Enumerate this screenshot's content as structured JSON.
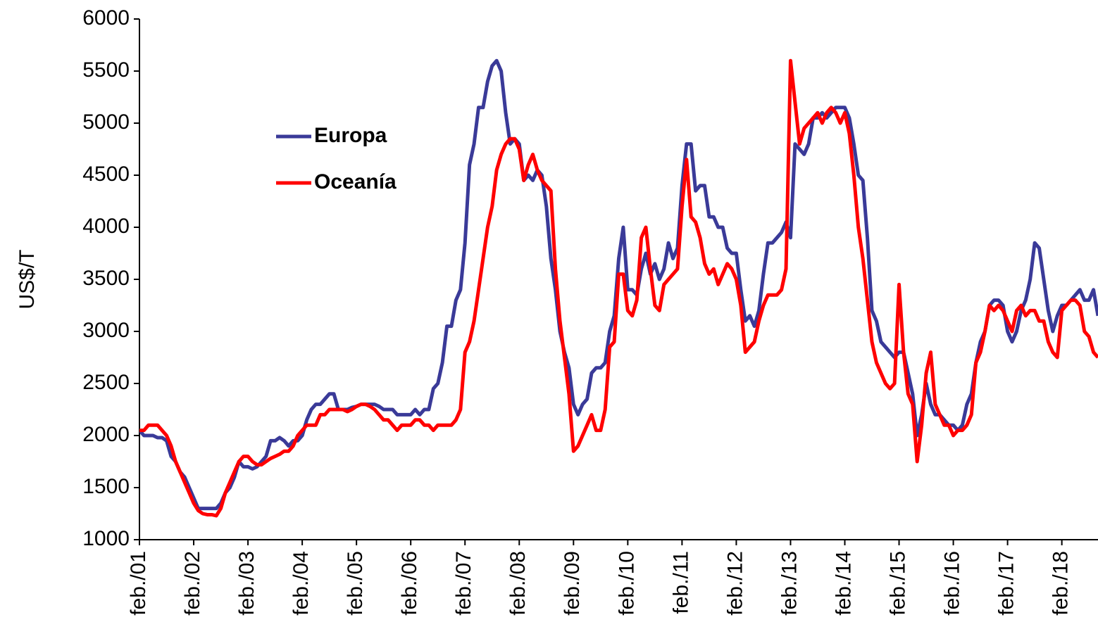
{
  "chart_data": {
    "type": "line",
    "y_label": "US$/T",
    "ylim": [
      1000,
      6000
    ],
    "yticks": [
      1000,
      1500,
      2000,
      2500,
      3000,
      3500,
      4000,
      4500,
      5000,
      5500,
      6000
    ],
    "xlim": [
      0,
      212
    ],
    "xticks": [
      {
        "value": 0,
        "label": "feb./01"
      },
      {
        "value": 12,
        "label": "feb./02"
      },
      {
        "value": 24,
        "label": "feb./03"
      },
      {
        "value": 36,
        "label": "feb./04"
      },
      {
        "value": 48,
        "label": "feb./05"
      },
      {
        "value": 60,
        "label": "feb./06"
      },
      {
        "value": 72,
        "label": "feb./07"
      },
      {
        "value": 84,
        "label": "feb./08"
      },
      {
        "value": 96,
        "label": "feb./09"
      },
      {
        "value": 108,
        "label": "feb./10"
      },
      {
        "value": 120,
        "label": "feb./11"
      },
      {
        "value": 132,
        "label": "feb./12"
      },
      {
        "value": 144,
        "label": "feb./13"
      },
      {
        "value": 156,
        "label": "feb./14"
      },
      {
        "value": 168,
        "label": "feb./15"
      },
      {
        "value": 180,
        "label": "feb./16"
      },
      {
        "value": 192,
        "label": "feb./17"
      },
      {
        "value": 204,
        "label": "feb./18"
      }
    ],
    "x": [
      0,
      1,
      2,
      3,
      4,
      5,
      6,
      7,
      8,
      9,
      10,
      11,
      12,
      13,
      14,
      15,
      16,
      17,
      18,
      19,
      20,
      21,
      22,
      23,
      24,
      25,
      26,
      27,
      28,
      29,
      30,
      31,
      32,
      33,
      34,
      35,
      36,
      37,
      38,
      39,
      40,
      41,
      42,
      43,
      44,
      45,
      46,
      47,
      48,
      49,
      50,
      51,
      52,
      53,
      54,
      55,
      56,
      57,
      58,
      59,
      60,
      61,
      62,
      63,
      64,
      65,
      66,
      67,
      68,
      69,
      70,
      71,
      72,
      73,
      74,
      75,
      76,
      77,
      78,
      79,
      80,
      81,
      82,
      83,
      84,
      85,
      86,
      87,
      88,
      89,
      90,
      91,
      92,
      93,
      94,
      95,
      96,
      97,
      98,
      99,
      100,
      101,
      102,
      103,
      104,
      105,
      106,
      107,
      108,
      109,
      110,
      111,
      112,
      113,
      114,
      115,
      116,
      117,
      118,
      119,
      120,
      121,
      122,
      123,
      124,
      125,
      126,
      127,
      128,
      129,
      130,
      131,
      132,
      133,
      134,
      135,
      136,
      137,
      138,
      139,
      140,
      141,
      142,
      143,
      144,
      145,
      146,
      147,
      148,
      149,
      150,
      151,
      152,
      153,
      154,
      155,
      156,
      157,
      158,
      159,
      160,
      161,
      162,
      163,
      164,
      165,
      166,
      167,
      168,
      169,
      170,
      171,
      172,
      173,
      174,
      175,
      176,
      177,
      178,
      179,
      180,
      181,
      182,
      183,
      184,
      185,
      186,
      187,
      188,
      189,
      190,
      191,
      192,
      193,
      194,
      195,
      196,
      197,
      198,
      199,
      200,
      201,
      202,
      203,
      204,
      205,
      206,
      207,
      208,
      209,
      210,
      211,
      212
    ],
    "series": [
      {
        "name": "Europa",
        "color": "#3a3a98",
        "values": [
          2050,
          2000,
          2000,
          2000,
          1980,
          1980,
          1950,
          1800,
          1750,
          1650,
          1600,
          1500,
          1400,
          1300,
          1300,
          1300,
          1300,
          1300,
          1350,
          1450,
          1500,
          1600,
          1750,
          1700,
          1700,
          1680,
          1700,
          1750,
          1800,
          1950,
          1950,
          1980,
          1950,
          1900,
          1950,
          1950,
          2000,
          2150,
          2250,
          2300,
          2300,
          2350,
          2400,
          2400,
          2250,
          2250,
          2250,
          2270,
          2280,
          2300,
          2300,
          2300,
          2300,
          2280,
          2250,
          2250,
          2250,
          2200,
          2200,
          2200,
          2200,
          2250,
          2200,
          2250,
          2250,
          2450,
          2500,
          2700,
          3050,
          3050,
          3300,
          3400,
          3850,
          4600,
          4800,
          5150,
          5150,
          5400,
          5550,
          5600,
          5500,
          5100,
          4800,
          4850,
          4800,
          4450,
          4500,
          4450,
          4550,
          4500,
          4200,
          3700,
          3400,
          3000,
          2800,
          2650,
          2300,
          2200,
          2300,
          2350,
          2600,
          2650,
          2650,
          2700,
          3000,
          3150,
          3700,
          4000,
          3400,
          3400,
          3350,
          3600,
          3750,
          3550,
          3650,
          3500,
          3600,
          3850,
          3700,
          3800,
          4400,
          4800,
          4800,
          4350,
          4400,
          4400,
          4100,
          4100,
          4000,
          4000,
          3800,
          3750,
          3750,
          3400,
          3100,
          3150,
          3050,
          3200,
          3550,
          3850,
          3850,
          3900,
          3950,
          4050,
          3900,
          4800,
          4750,
          4700,
          4800,
          5050,
          5050,
          5100,
          5050,
          5100,
          5150,
          5150,
          5150,
          5050,
          4800,
          4500,
          4450,
          3900,
          3200,
          3100,
          2900,
          2850,
          2800,
          2750,
          2800,
          2800,
          2600,
          2400,
          2000,
          2200,
          2500,
          2300,
          2200,
          2200,
          2150,
          2100,
          2100,
          2050,
          2100,
          2300,
          2400,
          2700,
          2900,
          3000,
          3250,
          3300,
          3300,
          3250,
          3000,
          2900,
          3000,
          3200,
          3300,
          3500,
          3850,
          3800,
          3500,
          3200,
          3000,
          3150,
          3250,
          3250,
          3300,
          3350,
          3400,
          3300,
          3300,
          3400,
          3150
        ]
      },
      {
        "name": "Oceanía",
        "color": "#ff0000",
        "values": [
          2050,
          2050,
          2100,
          2100,
          2100,
          2050,
          2000,
          1900,
          1750,
          1650,
          1550,
          1450,
          1350,
          1280,
          1250,
          1240,
          1240,
          1230,
          1300,
          1450,
          1550,
          1650,
          1750,
          1800,
          1800,
          1750,
          1720,
          1720,
          1750,
          1780,
          1800,
          1820,
          1850,
          1850,
          1900,
          2000,
          2050,
          2100,
          2100,
          2100,
          2200,
          2200,
          2250,
          2250,
          2250,
          2250,
          2230,
          2250,
          2280,
          2300,
          2300,
          2280,
          2250,
          2200,
          2150,
          2150,
          2100,
          2050,
          2100,
          2100,
          2100,
          2150,
          2150,
          2100,
          2100,
          2050,
          2100,
          2100,
          2100,
          2100,
          2150,
          2250,
          2800,
          2900,
          3100,
          3400,
          3700,
          4000,
          4200,
          4550,
          4700,
          4800,
          4850,
          4850,
          4750,
          4450,
          4600,
          4700,
          4550,
          4450,
          4400,
          4350,
          3600,
          3100,
          2750,
          2400,
          1850,
          1900,
          2000,
          2100,
          2200,
          2050,
          2050,
          2250,
          2850,
          2900,
          3550,
          3550,
          3200,
          3150,
          3300,
          3900,
          4000,
          3600,
          3250,
          3200,
          3450,
          3500,
          3550,
          3600,
          4200,
          4650,
          4100,
          4050,
          3900,
          3650,
          3550,
          3600,
          3450,
          3550,
          3650,
          3600,
          3500,
          3250,
          2800,
          2850,
          2900,
          3100,
          3250,
          3350,
          3350,
          3350,
          3400,
          3600,
          5600,
          5200,
          4800,
          4950,
          5000,
          5050,
          5100,
          5000,
          5100,
          5150,
          5100,
          5000,
          5100,
          4900,
          4500,
          4000,
          3700,
          3300,
          2900,
          2700,
          2600,
          2500,
          2450,
          2500,
          3450,
          2800,
          2400,
          2300,
          1750,
          2100,
          2600,
          2800,
          2300,
          2200,
          2100,
          2100,
          2000,
          2050,
          2050,
          2100,
          2200,
          2700,
          2800,
          3000,
          3250,
          3200,
          3250,
          3200,
          3100,
          3000,
          3200,
          3250,
          3150,
          3200,
          3200,
          3100,
          3100,
          2900,
          2800,
          2750,
          3200,
          3250,
          3300,
          3300,
          3250,
          3000,
          2950,
          2800,
          2750
        ]
      }
    ]
  }
}
